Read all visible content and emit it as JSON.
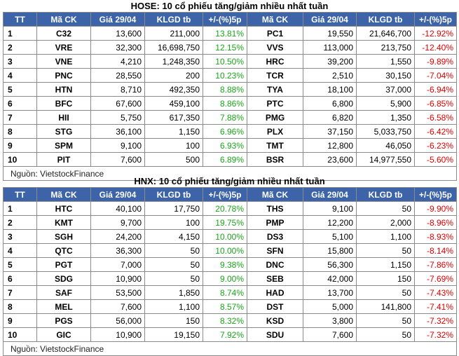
{
  "headers": [
    "TT",
    "Mã CK",
    "Giá 29/04",
    "KLGD tb",
    "+/-(%)5p",
    "Mã CK",
    "Giá 29/04",
    "KLGD tb",
    "+/-(%)5p"
  ],
  "colors": {
    "header_bg": "#3d64a8",
    "up": "#1aa51a",
    "down": "#e00000"
  },
  "hose": {
    "title": "HOSE: 10 cổ phiếu tăng/giảm nhiều nhất tuần",
    "source": "Nguồn: VietstockFinance",
    "rows": [
      {
        "tt": "1",
        "up_code": "C32",
        "up_price": "13,600",
        "up_vol": "211,000",
        "up_pct": "13.81%",
        "down_code": "PC1",
        "down_price": "19,550",
        "down_vol": "21,646,700",
        "down_pct": "-12.92%"
      },
      {
        "tt": "2",
        "up_code": "VRE",
        "up_price": "32,300",
        "up_vol": "16,698,750",
        "up_pct": "12.15%",
        "down_code": "VVS",
        "down_price": "113,000",
        "down_vol": "213,750",
        "down_pct": "-12.40%"
      },
      {
        "tt": "3",
        "up_code": "VNE",
        "up_price": "4,210",
        "up_vol": "1,248,350",
        "up_pct": "10.50%",
        "down_code": "HRC",
        "down_price": "39,200",
        "down_vol": "1,550",
        "down_pct": "-9.89%"
      },
      {
        "tt": "4",
        "up_code": "PNC",
        "up_price": "28,550",
        "up_vol": "200",
        "up_pct": "10.23%",
        "down_code": "TCR",
        "down_price": "2,510",
        "down_vol": "30,150",
        "down_pct": "-7.04%"
      },
      {
        "tt": "5",
        "up_code": "HTN",
        "up_price": "8,710",
        "up_vol": "492,350",
        "up_pct": "8.88%",
        "down_code": "TYA",
        "down_price": "18,100",
        "down_vol": "37,000",
        "down_pct": "-6.94%"
      },
      {
        "tt": "6",
        "up_code": "BFC",
        "up_price": "67,600",
        "up_vol": "459,100",
        "up_pct": "8.86%",
        "down_code": "PTC",
        "down_price": "6,800",
        "down_vol": "5,900",
        "down_pct": "-6.85%"
      },
      {
        "tt": "7",
        "up_code": "HII",
        "up_price": "5,750",
        "up_vol": "617,350",
        "up_pct": "7.88%",
        "down_code": "PMG",
        "down_price": "6,820",
        "down_vol": "1,350",
        "down_pct": "-6.58%"
      },
      {
        "tt": "8",
        "up_code": "STG",
        "up_price": "36,100",
        "up_vol": "1,150",
        "up_pct": "6.96%",
        "down_code": "PLX",
        "down_price": "37,150",
        "down_vol": "5,033,750",
        "down_pct": "-6.42%"
      },
      {
        "tt": "9",
        "up_code": "SPM",
        "up_price": "9,100",
        "up_vol": "100",
        "up_pct": "6.93%",
        "down_code": "TMT",
        "down_price": "12,800",
        "down_vol": "46,050",
        "down_pct": "-6.23%"
      },
      {
        "tt": "10",
        "up_code": "PIT",
        "up_price": "7,600",
        "up_vol": "500",
        "up_pct": "6.89%",
        "down_code": "BSR",
        "down_price": "23,600",
        "down_vol": "14,977,550",
        "down_pct": "-5.60%"
      }
    ]
  },
  "hnx": {
    "title": "HNX: 10 cổ phiếu tăng/giảm nhiều nhất tuần",
    "source": "Nguồn: VietstockFinance",
    "rows": [
      {
        "tt": "1",
        "up_code": "HTC",
        "up_price": "40,100",
        "up_vol": "17,750",
        "up_pct": "20.78%",
        "down_code": "THS",
        "down_price": "9,100",
        "down_vol": "50",
        "down_pct": "-9.90%"
      },
      {
        "tt": "2",
        "up_code": "KMT",
        "up_price": "9,700",
        "up_vol": "100",
        "up_pct": "19.75%",
        "down_code": "PMP",
        "down_price": "12,200",
        "down_vol": "2,000",
        "down_pct": "-8.96%"
      },
      {
        "tt": "3",
        "up_code": "SGH",
        "up_price": "24,200",
        "up_vol": "4,150",
        "up_pct": "10.00%",
        "down_code": "DS3",
        "down_price": "5,100",
        "down_vol": "1,100",
        "down_pct": "-8.93%"
      },
      {
        "tt": "4",
        "up_code": "QTC",
        "up_price": "36,300",
        "up_vol": "50",
        "up_pct": "10.00%",
        "down_code": "SFN",
        "down_price": "15,800",
        "down_vol": "50",
        "down_pct": "-8.14%"
      },
      {
        "tt": "5",
        "up_code": "PGT",
        "up_price": "7,000",
        "up_vol": "50",
        "up_pct": "9.38%",
        "down_code": "DNC",
        "down_price": "56,300",
        "down_vol": "1,150",
        "down_pct": "-7.86%"
      },
      {
        "tt": "6",
        "up_code": "SDG",
        "up_price": "10,900",
        "up_vol": "50",
        "up_pct": "9.00%",
        "down_code": "SEB",
        "down_price": "42,000",
        "down_vol": "150",
        "down_pct": "-7.69%"
      },
      {
        "tt": "7",
        "up_code": "SAF",
        "up_price": "53,500",
        "up_vol": "1,850",
        "up_pct": "8.74%",
        "down_code": "HAD",
        "down_price": "13,700",
        "down_vol": "50",
        "down_pct": "-7.43%"
      },
      {
        "tt": "8",
        "up_code": "MEL",
        "up_price": "7,600",
        "up_vol": "1,100",
        "up_pct": "8.57%",
        "down_code": "DST",
        "down_price": "5,000",
        "down_vol": "141,800",
        "down_pct": "-7.41%"
      },
      {
        "tt": "9",
        "up_code": "PGS",
        "up_price": "56,000",
        "up_vol": "150",
        "up_pct": "8.32%",
        "down_code": "KSD",
        "down_price": "3,800",
        "down_vol": "50",
        "down_pct": "-7.32%"
      },
      {
        "tt": "10",
        "up_code": "GIC",
        "up_price": "10,900",
        "up_vol": "19,150",
        "up_pct": "7.92%",
        "down_code": "SDU",
        "down_price": "7,600",
        "down_vol": "50",
        "down_pct": "-7.32%"
      }
    ]
  }
}
